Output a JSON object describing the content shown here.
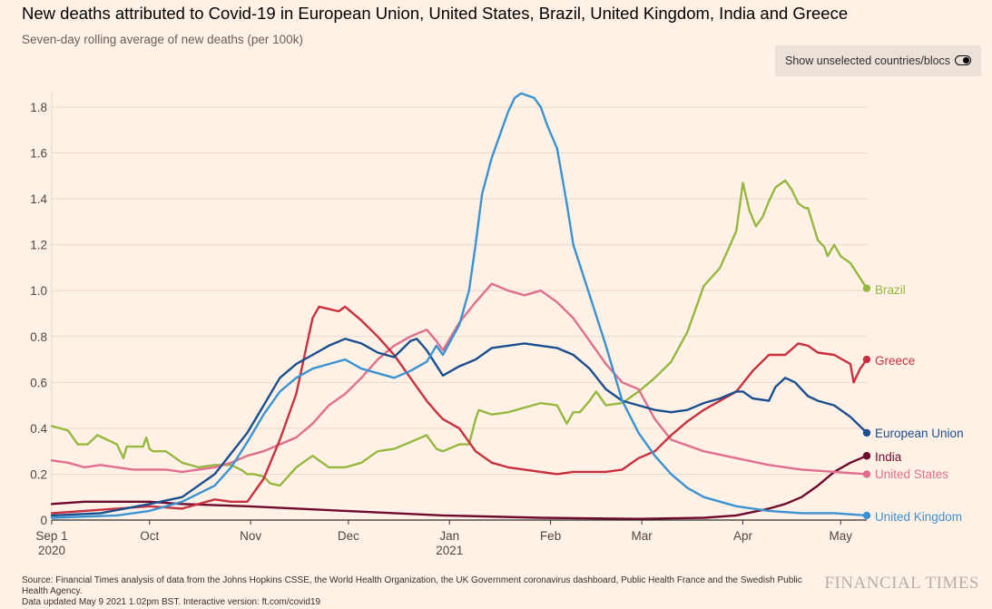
{
  "title": "New deaths attributed to Covid-19 in European Union, United States, Brazil, United Kingdom, India and Greece",
  "subtitle": "Seven-day rolling average of new deaths (per 100k)",
  "toggle_label": "Show unselected countries/blocs",
  "source": "Source: Financial Times analysis of data from the Johns Hopkins CSSE, the World Health Organization, the UK Government coronavirus dashboard, Public Health France and the Swedish Public Health Agency.",
  "updated": "Data updated May 9 2021 1.02pm BST. Interactive version: ft.com/covid19",
  "brand": "FINANCIAL TIMES",
  "colors": {
    "brazil": "#96b83f",
    "greece": "#c8303e",
    "eu": "#1a4f8f",
    "india": "#6d0a2e",
    "us": "#e06e8e",
    "uk": "#3a93d0",
    "grid": "#e6d9ce",
    "axis": "#33302e"
  },
  "chart_data": {
    "type": "line",
    "title": "New deaths attributed to Covid-19 in European Union, United States, Brazil, United Kingdom, India and Greece",
    "ylabel": "Seven-day rolling average of new deaths (per 100k)",
    "ylim": [
      0,
      1.85
    ],
    "yticks": [
      0,
      0.2,
      0.4,
      0.6,
      0.8,
      1.0,
      1.2,
      1.4,
      1.6,
      1.8
    ],
    "ytick_labels": [
      "0",
      "0.2",
      "0.4",
      "0.6",
      "0.8",
      "1.0",
      "1.2",
      "1.4",
      "1.6",
      "1.8"
    ],
    "xlim": [
      "2020-09-01",
      "2021-05-08"
    ],
    "x_unit": "days since 2020-09-01",
    "xticks": [
      {
        "day": 0,
        "label": "Sep 1",
        "sublabel": "2020"
      },
      {
        "day": 30,
        "label": "Oct",
        "sublabel": ""
      },
      {
        "day": 61,
        "label": "Nov",
        "sublabel": ""
      },
      {
        "day": 91,
        "label": "Dec",
        "sublabel": ""
      },
      {
        "day": 122,
        "label": "Jan",
        "sublabel": "2021"
      },
      {
        "day": 153,
        "label": "Feb",
        "sublabel": ""
      },
      {
        "day": 181,
        "label": "Mar",
        "sublabel": ""
      },
      {
        "day": 212,
        "label": "Apr",
        "sublabel": ""
      },
      {
        "day": 242,
        "label": "May",
        "sublabel": ""
      }
    ],
    "series": [
      {
        "name": "Brazil",
        "key": "brazil",
        "x": [
          0,
          5,
          8,
          11,
          14,
          17,
          20,
          22,
          23,
          25,
          28,
          29,
          30,
          31,
          35,
          40,
          45,
          50,
          55,
          58,
          60,
          62,
          65,
          67,
          70,
          75,
          80,
          85,
          90,
          95,
          100,
          105,
          110,
          115,
          118,
          120,
          125,
          128,
          130,
          131,
          135,
          140,
          145,
          150,
          155,
          158,
          160,
          162,
          165,
          167,
          170,
          175,
          180,
          185,
          190,
          195,
          200,
          205,
          210,
          212,
          214,
          216,
          218,
          220,
          222,
          224,
          225,
          226,
          227,
          229,
          231,
          232,
          235,
          237,
          238,
          240,
          242,
          245,
          250
        ],
        "y": [
          0.41,
          0.39,
          0.33,
          0.33,
          0.37,
          0.35,
          0.33,
          0.27,
          0.32,
          0.32,
          0.32,
          0.36,
          0.31,
          0.3,
          0.3,
          0.25,
          0.23,
          0.24,
          0.24,
          0.22,
          0.2,
          0.2,
          0.19,
          0.16,
          0.15,
          0.23,
          0.28,
          0.23,
          0.23,
          0.25,
          0.3,
          0.31,
          0.34,
          0.37,
          0.31,
          0.3,
          0.33,
          0.33,
          0.44,
          0.48,
          0.46,
          0.47,
          0.49,
          0.51,
          0.5,
          0.42,
          0.47,
          0.47,
          0.52,
          0.56,
          0.5,
          0.51,
          0.56,
          0.62,
          0.69,
          0.82,
          1.02,
          1.1,
          1.26,
          1.47,
          1.35,
          1.28,
          1.32,
          1.39,
          1.45,
          1.47,
          1.48,
          1.46,
          1.44,
          1.38,
          1.36,
          1.36,
          1.22,
          1.19,
          1.15,
          1.2,
          1.15,
          1.12,
          1.01
        ]
      },
      {
        "name": "Greece",
        "key": "greece",
        "x": [
          0,
          10,
          20,
          30,
          40,
          50,
          55,
          60,
          65,
          70,
          75,
          80,
          82,
          85,
          88,
          90,
          95,
          100,
          105,
          110,
          115,
          118,
          120,
          125,
          130,
          135,
          140,
          145,
          150,
          155,
          160,
          165,
          170,
          175,
          180,
          185,
          190,
          195,
          200,
          205,
          210,
          215,
          220,
          225,
          229,
          232,
          235,
          240,
          245,
          246,
          248,
          250
        ],
        "y": [
          0.03,
          0.04,
          0.05,
          0.06,
          0.05,
          0.09,
          0.08,
          0.08,
          0.18,
          0.35,
          0.55,
          0.88,
          0.93,
          0.92,
          0.91,
          0.93,
          0.87,
          0.8,
          0.72,
          0.62,
          0.52,
          0.47,
          0.44,
          0.4,
          0.3,
          0.25,
          0.23,
          0.22,
          0.21,
          0.2,
          0.21,
          0.21,
          0.21,
          0.22,
          0.27,
          0.3,
          0.37,
          0.43,
          0.48,
          0.52,
          0.56,
          0.65,
          0.72,
          0.72,
          0.77,
          0.76,
          0.73,
          0.72,
          0.68,
          0.6,
          0.66,
          0.7
        ]
      },
      {
        "name": "European Union",
        "key": "eu",
        "x": [
          0,
          15,
          30,
          40,
          50,
          60,
          65,
          70,
          75,
          80,
          85,
          90,
          95,
          100,
          105,
          110,
          112,
          115,
          120,
          125,
          130,
          135,
          140,
          145,
          150,
          155,
          160,
          165,
          170,
          175,
          180,
          185,
          190,
          195,
          200,
          205,
          210,
          212,
          215,
          220,
          222,
          225,
          228,
          232,
          235,
          240,
          245,
          250
        ],
        "y": [
          0.02,
          0.03,
          0.07,
          0.1,
          0.2,
          0.38,
          0.5,
          0.62,
          0.68,
          0.72,
          0.76,
          0.79,
          0.77,
          0.73,
          0.71,
          0.78,
          0.79,
          0.74,
          0.63,
          0.67,
          0.7,
          0.75,
          0.76,
          0.77,
          0.76,
          0.75,
          0.72,
          0.66,
          0.57,
          0.52,
          0.5,
          0.48,
          0.47,
          0.48,
          0.51,
          0.53,
          0.56,
          0.56,
          0.53,
          0.52,
          0.58,
          0.62,
          0.6,
          0.54,
          0.52,
          0.5,
          0.45,
          0.38
        ]
      },
      {
        "name": "India",
        "key": "india",
        "x": [
          0,
          10,
          20,
          30,
          40,
          60,
          90,
          120,
          150,
          180,
          200,
          210,
          220,
          225,
          230,
          235,
          240,
          245,
          250
        ],
        "y": [
          0.07,
          0.08,
          0.08,
          0.08,
          0.07,
          0.06,
          0.04,
          0.02,
          0.01,
          0.005,
          0.01,
          0.02,
          0.05,
          0.07,
          0.1,
          0.15,
          0.21,
          0.25,
          0.28
        ]
      },
      {
        "name": "United States",
        "key": "us",
        "x": [
          0,
          5,
          10,
          15,
          20,
          25,
          30,
          35,
          40,
          45,
          50,
          55,
          60,
          65,
          70,
          75,
          80,
          85,
          90,
          95,
          100,
          105,
          110,
          115,
          118,
          120,
          125,
          130,
          135,
          140,
          145,
          150,
          155,
          160,
          165,
          170,
          175,
          180,
          185,
          190,
          200,
          210,
          220,
          230,
          240,
          250
        ],
        "y": [
          0.26,
          0.25,
          0.23,
          0.24,
          0.23,
          0.22,
          0.22,
          0.22,
          0.21,
          0.22,
          0.23,
          0.25,
          0.28,
          0.3,
          0.33,
          0.36,
          0.42,
          0.5,
          0.55,
          0.62,
          0.7,
          0.76,
          0.8,
          0.83,
          0.78,
          0.74,
          0.86,
          0.95,
          1.03,
          1.0,
          0.98,
          1.0,
          0.95,
          0.88,
          0.78,
          0.68,
          0.6,
          0.57,
          0.44,
          0.35,
          0.3,
          0.27,
          0.24,
          0.22,
          0.21,
          0.2
        ]
      },
      {
        "name": "United Kingdom",
        "key": "uk",
        "x": [
          0,
          20,
          30,
          40,
          50,
          55,
          60,
          65,
          70,
          75,
          80,
          85,
          90,
          95,
          100,
          105,
          110,
          115,
          118,
          120,
          125,
          128,
          130,
          132,
          135,
          138,
          140,
          142,
          144,
          146,
          148,
          150,
          152,
          155,
          158,
          160,
          165,
          170,
          175,
          180,
          185,
          190,
          195,
          200,
          210,
          220,
          230,
          240,
          250
        ],
        "y": [
          0.01,
          0.02,
          0.04,
          0.08,
          0.15,
          0.23,
          0.34,
          0.46,
          0.56,
          0.62,
          0.66,
          0.68,
          0.7,
          0.66,
          0.64,
          0.62,
          0.65,
          0.69,
          0.76,
          0.72,
          0.85,
          1.0,
          1.2,
          1.42,
          1.58,
          1.7,
          1.78,
          1.84,
          1.86,
          1.85,
          1.84,
          1.8,
          1.72,
          1.62,
          1.38,
          1.2,
          0.98,
          0.76,
          0.52,
          0.38,
          0.28,
          0.2,
          0.14,
          0.1,
          0.06,
          0.04,
          0.03,
          0.03,
          0.02
        ]
      }
    ],
    "end_labels": [
      {
        "key": "brazil",
        "label": "Brazil"
      },
      {
        "key": "greece",
        "label": "Greece"
      },
      {
        "key": "eu",
        "label": "European Union"
      },
      {
        "key": "india",
        "label": "India"
      },
      {
        "key": "us",
        "label": "United States"
      },
      {
        "key": "uk",
        "label": "United Kingdom"
      }
    ]
  }
}
